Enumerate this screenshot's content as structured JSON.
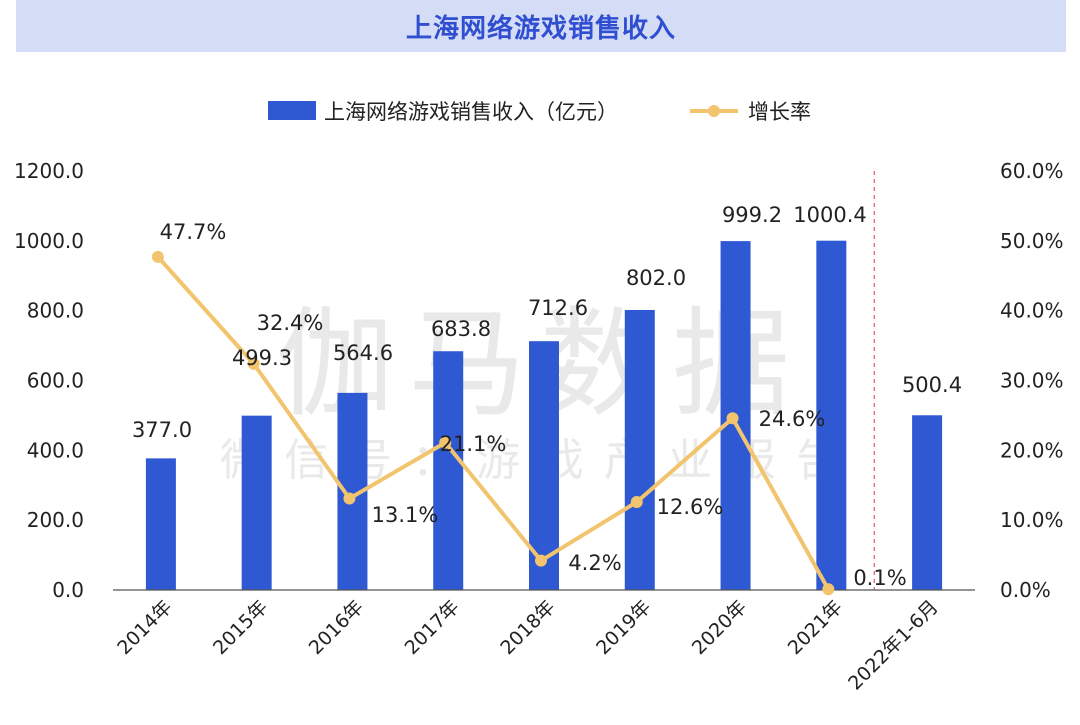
{
  "header": {
    "title": "上海网络游戏销售收入"
  },
  "watermark": {
    "main": "伽马数据",
    "sub": "微信号：游戏产业报告"
  },
  "colors": {
    "bar": "#2f58d3",
    "line": "#f2c46d",
    "title_bg": "#d5dcf6",
    "title_text": "#2f4fd0",
    "divider": "#d23b3b",
    "axis": "#222222"
  },
  "chart_data": {
    "type": "bar",
    "title": "上海网络游戏销售收入",
    "categories": [
      "2014年",
      "2015年",
      "2016年",
      "2017年",
      "2018年",
      "2019年",
      "2020年",
      "2021年",
      "2022年1-6月"
    ],
    "series": [
      {
        "name": "上海网络游戏销售收入（亿元）",
        "type": "bar",
        "axis": "left",
        "values": [
          377.0,
          499.3,
          564.6,
          683.8,
          712.6,
          802.0,
          999.2,
          1000.4,
          500.4
        ],
        "labels": [
          "377.0",
          "499.3",
          "564.6",
          "683.8",
          "712.6",
          "802.0",
          "999.2",
          "1000.4",
          "500.4"
        ]
      },
      {
        "name": "增长率",
        "type": "line",
        "axis": "right",
        "values": [
          47.7,
          32.4,
          13.1,
          21.1,
          4.2,
          12.6,
          24.6,
          0.1,
          null
        ],
        "labels": [
          "47.7%",
          "32.4%",
          "13.1%",
          "21.1%",
          "4.2%",
          "12.6%",
          "24.6%",
          "0.1%",
          null
        ]
      }
    ],
    "y_left": {
      "min": 0,
      "max": 1200,
      "ticks": [
        "0.0",
        "200.0",
        "400.0",
        "600.0",
        "800.0",
        "1000.0",
        "1200.0"
      ]
    },
    "y_right": {
      "min": 0,
      "max": 60,
      "ticks": [
        "0.0%",
        "10.0%",
        "20.0%",
        "30.0%",
        "40.0%",
        "50.0%",
        "60.0%"
      ]
    },
    "legend": {
      "position": "top-center"
    },
    "grid": false
  }
}
